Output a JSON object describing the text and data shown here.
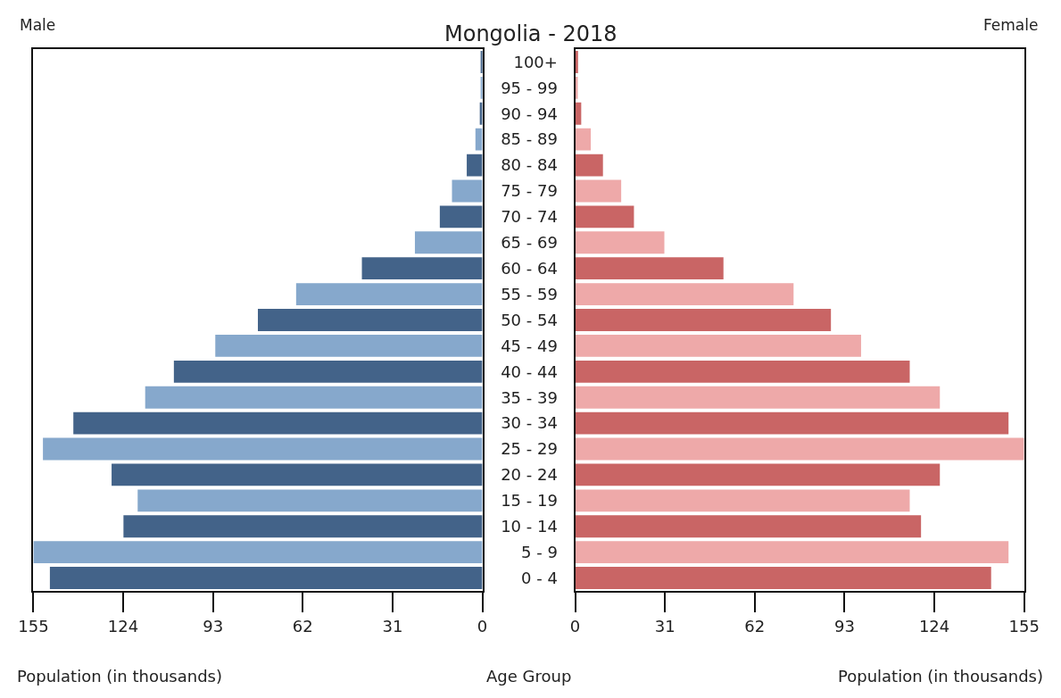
{
  "chart_data": [
    {
      "type": "bar",
      "orientation": "horizontal",
      "title": "Mongolia - 2018",
      "xlabel": "Population (in thousands)",
      "tick_labels": "x",
      "xlim": [
        155,
        0
      ],
      "xticks": [
        155,
        124,
        93,
        62,
        31,
        0
      ],
      "series": [
        {
          "name": "Male",
          "colors": [
            "#436389",
            "#86a8cc",
            "#436389",
            "#86a8cc",
            "#436389",
            "#86a8cc",
            "#436389",
            "#86a8cc",
            "#436389",
            "#86a8cc",
            "#436389",
            "#86a8cc",
            "#436389",
            "#86a8cc",
            "#436389",
            "#86a8cc",
            "#436389",
            "#86a8cc",
            "#436389",
            "#86a8cc",
            "#436389"
          ],
          "values": [
            0.6,
            0.6,
            0.9,
            2.4,
            5.4,
            10.5,
            14.7,
            23.3,
            41.6,
            64.3,
            77.5,
            92.2,
            106.5,
            116.4,
            141.2,
            151.7,
            128,
            119,
            123.9,
            155,
            149.3
          ]
        }
      ]
    },
    {
      "type": "bar",
      "orientation": "horizontal",
      "xlabel": "Population (in thousands)",
      "ylabel": "Age Group",
      "categories": [
        "100+",
        "95 - 99",
        "90 - 94",
        "85 - 89",
        "80 - 84",
        "75 - 79",
        "70 - 74",
        "65 - 69",
        "60 - 64",
        "55 - 59",
        "50 - 54",
        "45 - 49",
        "40 - 44",
        "35 - 39",
        "30 - 34",
        "25 - 29",
        "20 - 24",
        "15 - 19",
        "10 - 14",
        "5 - 9",
        "0 - 4"
      ],
      "xlim": [
        0,
        155
      ],
      "xticks": [
        0,
        31,
        62,
        93,
        124,
        155
      ],
      "series": [
        {
          "name": "Female",
          "colors": [
            "#c96565",
            "#eea9a9",
            "#c96565",
            "#eea9a9",
            "#c96565",
            "#eea9a9",
            "#c96565",
            "#eea9a9",
            "#c96565",
            "#eea9a9",
            "#c96565",
            "#eea9a9",
            "#c96565",
            "#eea9a9",
            "#c96565",
            "#eea9a9",
            "#c96565",
            "#eea9a9",
            "#c96565",
            "#eea9a9",
            "#c96565"
          ],
          "values": [
            1.0,
            0.9,
            2.1,
            5.4,
            9.6,
            15.9,
            20.3,
            30.8,
            51.2,
            75.4,
            88.3,
            98.7,
            115.5,
            125.9,
            149.6,
            155,
            125.9,
            115.5,
            119.4,
            149.6,
            143.6
          ]
        }
      ]
    }
  ]
}
